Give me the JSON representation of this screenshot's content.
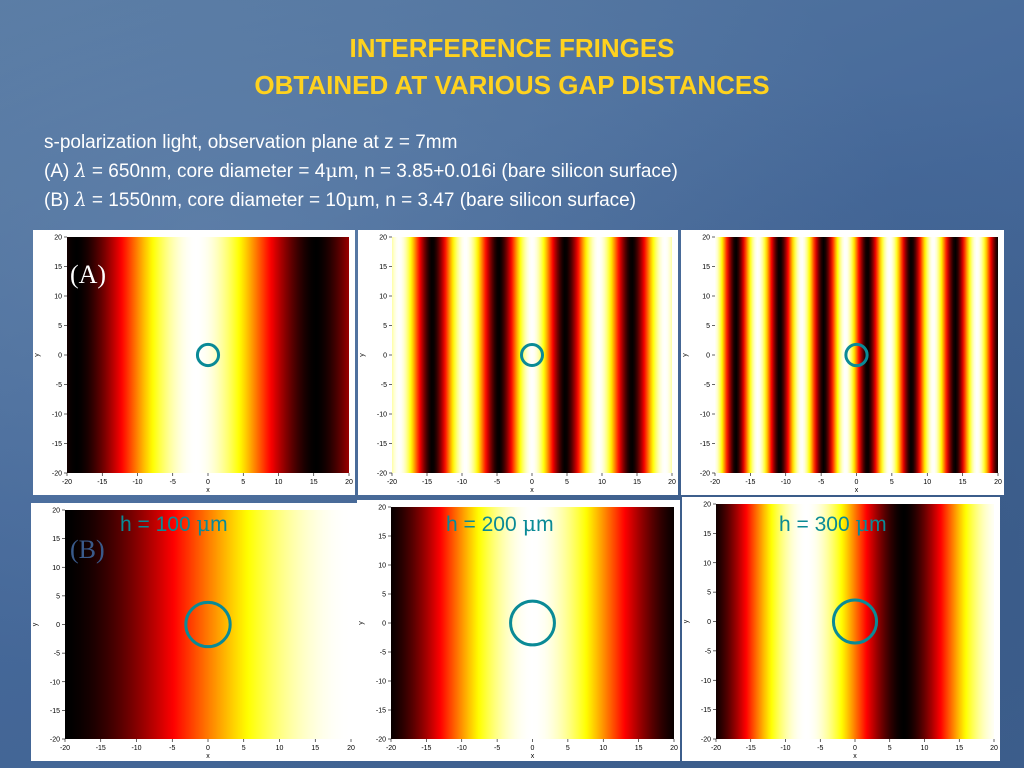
{
  "title": {
    "line1": "INTERFERENCE FRINGES",
    "line2": "OBTAINED AT VARIOUS GAP DISTANCES"
  },
  "description": {
    "line1": "s-polarization light, observation plane at z = 7mm",
    "lineA_prefix": "(A) ",
    "lambda_symbol": "λ",
    "lineA_mid1": " = 650nm, core diameter = 4",
    "mu_symbol": "μ",
    "lineA_rest": "m, n = 3.85+0.016i (bare silicon surface)",
    "lineB_prefix": "(B) ",
    "lineB_mid1": " = 1550nm, core diameter = 10",
    "lineB_rest": "m, n = 3.47 (bare silicon surface)"
  },
  "row_labels": {
    "A": "(A)",
    "B": "(B)"
  },
  "gap_labels": {
    "h100": {
      "prefix": "h = 100 ",
      "unit": "m"
    },
    "h200": {
      "prefix": "h = 200 ",
      "unit": "m"
    },
    "h300": {
      "prefix": "h = 300 ",
      "unit": "m"
    }
  },
  "axes": {
    "x_label": "x",
    "y_label": "y",
    "x_ticks": [
      "-20",
      "-15",
      "-10",
      "-5",
      "0",
      "5",
      "10",
      "15",
      "20"
    ],
    "y_ticks": [
      "20",
      "15",
      "10",
      "5",
      "0",
      "-5",
      "-10",
      "-15",
      "-20"
    ]
  },
  "colors": {
    "title": "#ffd21e",
    "text": "#ffffff",
    "accent": "#0a8a96",
    "row_label": "#3a5a8a"
  },
  "plots": [
    {
      "id": "A-h100",
      "row": "A",
      "period": 34,
      "phase": 0.1,
      "circle_r_um": 1.5
    },
    {
      "id": "A-h200",
      "row": "A",
      "period": 9.5,
      "phase": 0.0,
      "circle_r_um": 1.5
    },
    {
      "id": "A-h300",
      "row": "A",
      "period": 6.2,
      "phase": 0.5,
      "circle_r_um": 1.5
    },
    {
      "id": "B-h100",
      "row": "B",
      "period": 80,
      "phase": -0.5,
      "circle_r_um": 3.1
    },
    {
      "id": "B-h200",
      "row": "B",
      "period": 42,
      "phase": 0.0,
      "circle_r_um": 3.1
    },
    {
      "id": "B-h300",
      "row": "B",
      "period": 28,
      "phase": 0.5,
      "circle_r_um": 3.1
    }
  ]
}
